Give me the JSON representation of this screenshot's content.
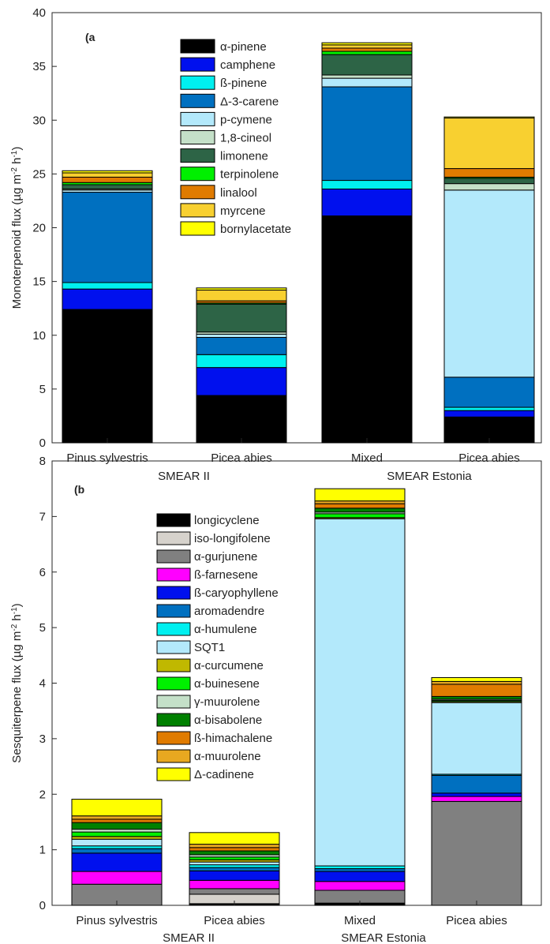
{
  "chart_data": [
    {
      "type": "bar",
      "stacked": true,
      "panel_label": "(a",
      "ylabel": "Monoterpenoid flux (µg m-2 h-1)",
      "ylim": [
        0,
        40
      ],
      "yticks": [
        0,
        5,
        10,
        15,
        20,
        25,
        30,
        35,
        40
      ],
      "categories": [
        "Pinus sylvestris",
        "Picea abies",
        "Mixed",
        "Picea abies"
      ],
      "groups": [
        "SMEAR II",
        "SMEAR Estonia"
      ],
      "legend_placement": "top-center",
      "series": [
        {
          "name": "α-pinene",
          "color": "#000000",
          "values": [
            12.4,
            4.4,
            21.1,
            2.4
          ]
        },
        {
          "name": "camphene",
          "color": "#0010ee",
          "values": [
            1.9,
            2.6,
            2.5,
            0.6
          ]
        },
        {
          "name": "ß-pinene",
          "color": "#00f0f0",
          "values": [
            0.6,
            1.2,
            0.8,
            0.3
          ]
        },
        {
          "name": "Δ-3-carene",
          "color": "#0070c0",
          "values": [
            8.4,
            1.6,
            8.7,
            2.8
          ]
        },
        {
          "name": "p-cymene",
          "color": "#b3e9fb",
          "values": [
            0.2,
            0.3,
            0.8,
            17.4
          ]
        },
        {
          "name": "1,8-cineol",
          "color": "#c4e0c8",
          "values": [
            0.1,
            0.2,
            0.3,
            0.6
          ]
        },
        {
          "name": "limonene",
          "color": "#2d6446",
          "values": [
            0.4,
            2.6,
            1.9,
            0.5
          ]
        },
        {
          "name": "terpinolene",
          "color": "#00f000",
          "values": [
            0.2,
            0.1,
            0.3,
            0.1
          ]
        },
        {
          "name": "linalool",
          "color": "#e07b00",
          "values": [
            0.5,
            0.2,
            0.3,
            0.8
          ]
        },
        {
          "name": "myrcene",
          "color": "#f8d030",
          "values": [
            0.4,
            1.0,
            0.3,
            4.7
          ]
        },
        {
          "name": "bornylacetate",
          "color": "#ffff00",
          "values": [
            0.2,
            0.2,
            0.2,
            0.1
          ]
        }
      ]
    },
    {
      "type": "bar",
      "stacked": true,
      "panel_label": "(b",
      "ylabel": "Sesquiterpene flux (µg m-2 h-1)",
      "ylim": [
        0,
        8
      ],
      "yticks": [
        0,
        1,
        2,
        3,
        4,
        5,
        6,
        7,
        8
      ],
      "categories": [
        "Pinus sylvestris",
        "Picea abies",
        "Mixed",
        "Picea abies"
      ],
      "groups": [
        "SMEAR II",
        "SMEAR Estonia"
      ],
      "legend_placement": "top-left",
      "series": [
        {
          "name": "longicyclene",
          "color": "#000000",
          "values": [
            0.0,
            0.03,
            0.04,
            0.0
          ]
        },
        {
          "name": "iso-longifolene",
          "color": "#d6d2cc",
          "values": [
            0.0,
            0.17,
            0.0,
            0.0
          ]
        },
        {
          "name": "α-gurjunene",
          "color": "#808080",
          "values": [
            0.38,
            0.1,
            0.23,
            1.87
          ]
        },
        {
          "name": "ß-farnesene",
          "color": "#ff00ff",
          "values": [
            0.23,
            0.15,
            0.16,
            0.09
          ]
        },
        {
          "name": "ß-caryophyllene",
          "color": "#0010ee",
          "values": [
            0.33,
            0.17,
            0.18,
            0.06
          ]
        },
        {
          "name": "aromadendre",
          "color": "#0070c0",
          "values": [
            0.08,
            0.06,
            0.05,
            0.32
          ]
        },
        {
          "name": "α-humulene",
          "color": "#00f0f0",
          "values": [
            0.05,
            0.05,
            0.05,
            0.02
          ]
        },
        {
          "name": "SQT1",
          "color": "#b3e9fb",
          "values": [
            0.12,
            0.05,
            6.25,
            1.29
          ]
        },
        {
          "name": "α-curcumene",
          "color": "#c0b800",
          "values": [
            0.05,
            0.04,
            0.02,
            0.02
          ]
        },
        {
          "name": "α-buinesene",
          "color": "#00f000",
          "values": [
            0.08,
            0.05,
            0.07,
            0.02
          ]
        },
        {
          "name": "γ-muurolene",
          "color": "#c4e0c8",
          "values": [
            0.05,
            0.04,
            0.03,
            0.02
          ]
        },
        {
          "name": "α-bisabolene",
          "color": "#008000",
          "values": [
            0.12,
            0.07,
            0.07,
            0.05
          ]
        },
        {
          "name": "ß-himachalene",
          "color": "#e07b00",
          "values": [
            0.06,
            0.06,
            0.08,
            0.22
          ]
        },
        {
          "name": "α-muurolene",
          "color": "#e8a820",
          "values": [
            0.06,
            0.06,
            0.05,
            0.05
          ]
        },
        {
          "name": "Δ-cadinene",
          "color": "#ffff00",
          "values": [
            0.3,
            0.21,
            0.22,
            0.07
          ]
        }
      ]
    }
  ]
}
